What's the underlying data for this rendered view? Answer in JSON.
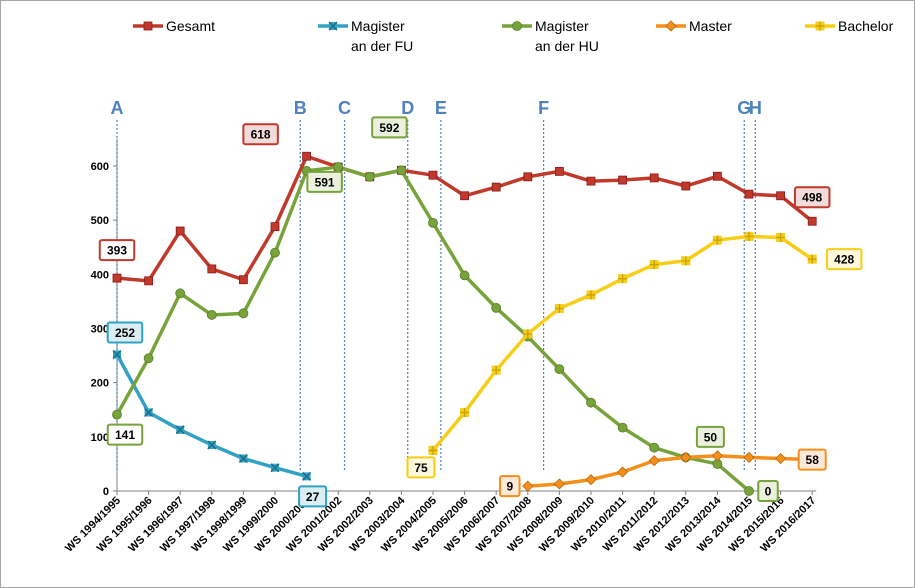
{
  "chart_data": {
    "type": "line",
    "categories": [
      "WS 1994/1995",
      "WS 1995/1996",
      "WS 1996/1997",
      "WS 1997/1998",
      "WS 1998/1999",
      "WS 1999/2000",
      "WS 2000/2001",
      "WS 2001/2002",
      "WS 2002/2003",
      "WS 2003/2004",
      "WS 2004/2005",
      "WS 2005/2006",
      "WS 2006/2007",
      "WS 2007/2008",
      "WS 2008/2009",
      "WS 2009/2010",
      "WS 2010/2011",
      "WS 2011/2012",
      "WS 2012/2013",
      "WS 2013/2014",
      "WS 2014/2015",
      "WS 2015/2016",
      "WS 2016/2017"
    ],
    "ylim": [
      0,
      650
    ],
    "yticks": [
      0,
      100,
      200,
      300,
      400,
      500,
      600
    ],
    "legend_position": "top",
    "series": [
      {
        "name": "Gesamt",
        "color": "#c0392b",
        "marker": "square",
        "values": [
          393,
          388,
          480,
          410,
          390,
          488,
          618,
          598,
          580,
          592,
          583,
          545,
          561,
          580,
          590,
          572,
          574,
          578,
          563,
          581,
          548,
          545,
          498
        ]
      },
      {
        "name": "Magister an der FU",
        "name_lines": [
          "Magister",
          "an der FU"
        ],
        "color": "#31a1c4",
        "marker": "x",
        "values": [
          252,
          145,
          113,
          85,
          60,
          43,
          27,
          null,
          null,
          null,
          null,
          null,
          null,
          null,
          null,
          null,
          null,
          null,
          null,
          null,
          null,
          null,
          null
        ]
      },
      {
        "name": "Magister an der HU",
        "name_lines": [
          "Magister",
          "an der HU"
        ],
        "color": "#77a33a",
        "marker": "circle",
        "values": [
          141,
          245,
          365,
          325,
          328,
          440,
          591,
          598,
          580,
          592,
          495,
          398,
          338,
          285,
          225,
          163,
          117,
          80,
          62,
          50,
          0,
          null,
          null
        ]
      },
      {
        "name": "Master",
        "color": "#f38f1a",
        "marker": "diamond",
        "values": [
          null,
          null,
          null,
          null,
          null,
          null,
          null,
          null,
          null,
          null,
          null,
          null,
          null,
          9,
          13,
          21,
          35,
          56,
          62,
          65,
          62,
          60,
          58
        ]
      },
      {
        "name": "Bachelor",
        "color": "#f8cd16",
        "marker": "plus",
        "values": [
          null,
          null,
          null,
          null,
          null,
          null,
          null,
          null,
          null,
          null,
          75,
          145,
          223,
          290,
          337,
          362,
          392,
          418,
          425,
          463,
          470,
          468,
          428
        ]
      }
    ],
    "data_labels": [
      {
        "text": "393",
        "series": 0,
        "index": 0,
        "color": "#c0392b",
        "bg": "#ffffff"
      },
      {
        "text": "618",
        "series": 0,
        "index": 6,
        "color": "#c0392b",
        "bg": "#f2dcdb"
      },
      {
        "text": "498",
        "series": 0,
        "index": 22,
        "color": "#c0392b",
        "bg": "#f2dcdb"
      },
      {
        "text": "252",
        "series": 1,
        "index": 0,
        "color": "#31a1c4",
        "bg": "#dbeef4"
      },
      {
        "text": "27",
        "series": 1,
        "index": 6,
        "color": "#31a1c4",
        "bg": "#dbeef4"
      },
      {
        "text": "141",
        "series": 2,
        "index": 0,
        "color": "#77a33a",
        "bg": "#ffffff"
      },
      {
        "text": "591",
        "series": 2,
        "index": 6,
        "color": "#77a33a",
        "bg": "#ebf1de"
      },
      {
        "text": "592",
        "series": 2,
        "index": 9,
        "color": "#77a33a",
        "bg": "#ebf1de"
      },
      {
        "text": "50",
        "series": 2,
        "index": 19,
        "color": "#77a33a",
        "bg": "#ebf1de"
      },
      {
        "text": "0",
        "series": 2,
        "index": 20,
        "color": "#77a33a",
        "bg": "#ebf1de"
      },
      {
        "text": "9",
        "series": 3,
        "index": 13,
        "color": "#f38f1a",
        "bg": "#fde9d9"
      },
      {
        "text": "58",
        "series": 3,
        "index": 22,
        "color": "#f38f1a",
        "bg": "#fde9d9"
      },
      {
        "text": "75",
        "series": 4,
        "index": 10,
        "color": "#f8cd16",
        "bg": "#fff8dc"
      },
      {
        "text": "428",
        "series": 4,
        "index": 22,
        "color": "#f8cd16",
        "bg": "#fff8dc"
      }
    ],
    "phase_markers": [
      {
        "letter": "A",
        "position": 0
      },
      {
        "letter": "B",
        "position": 5.8
      },
      {
        "letter": "C",
        "position": 7.2
      },
      {
        "letter": "D",
        "position": 9.2
      },
      {
        "letter": "E",
        "position": 10.25
      },
      {
        "letter": "F",
        "position": 13.5
      },
      {
        "letter": "G",
        "position": 19.85
      },
      {
        "letter": "H",
        "position": 20.2
      }
    ]
  }
}
